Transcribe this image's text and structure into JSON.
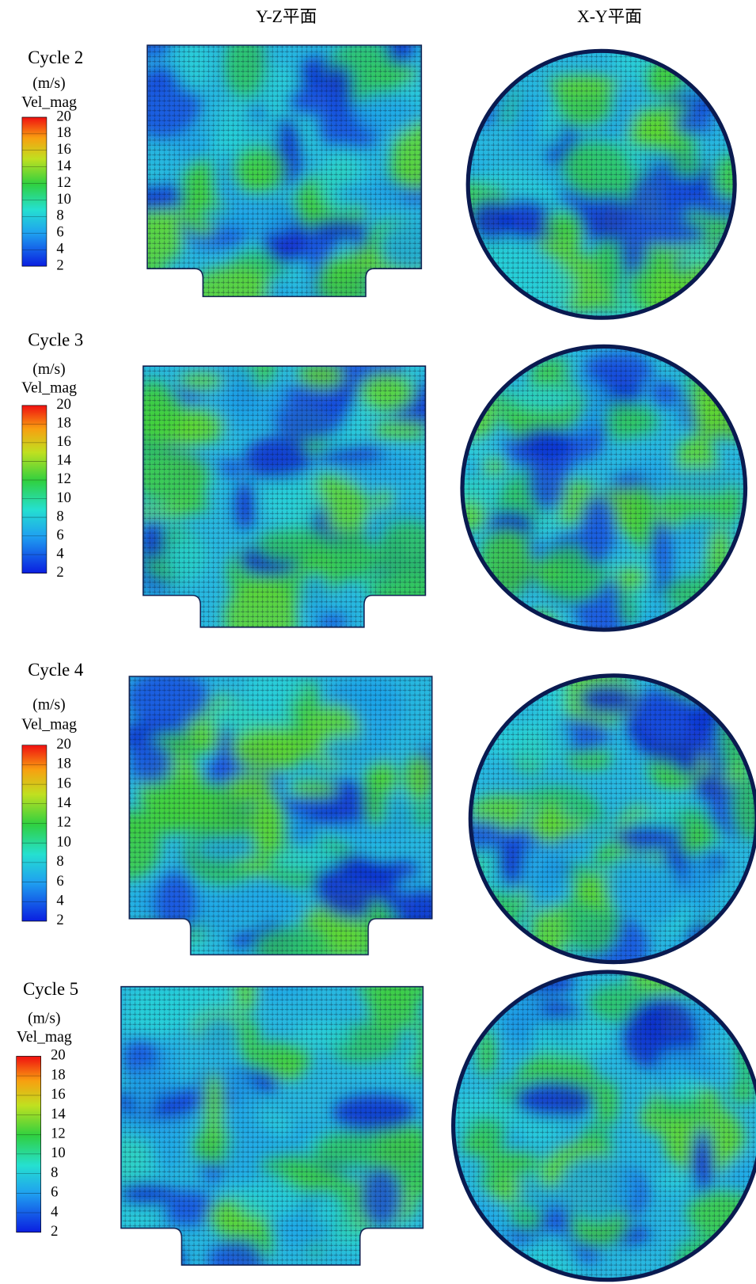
{
  "column_headers": [
    "Y-Z平面",
    "X-Y平面"
  ],
  "rows": [
    {
      "label": "Cycle 2",
      "unit": "(m/s)",
      "quantity": "Vel_mag",
      "colorbar_ticks": [
        20,
        18,
        16,
        14,
        12,
        10,
        8,
        6,
        4,
        2
      ]
    },
    {
      "label": "Cycle 3",
      "unit": "(m/s)",
      "quantity": "Vel_mag",
      "colorbar_ticks": [
        20,
        18,
        16,
        14,
        12,
        10,
        8,
        6,
        4,
        2
      ]
    },
    {
      "label": "Cycle 4",
      "unit": "(m/s)",
      "quantity": "Vel_mag",
      "colorbar_ticks": [
        20,
        18,
        16,
        14,
        12,
        10,
        8,
        6,
        4,
        2
      ]
    },
    {
      "label": "Cycle 5",
      "unit": "(m/s)",
      "quantity": "Vel_mag",
      "colorbar_ticks": [
        20,
        18,
        16,
        14,
        12,
        10,
        8,
        6,
        4,
        2
      ]
    }
  ]
}
